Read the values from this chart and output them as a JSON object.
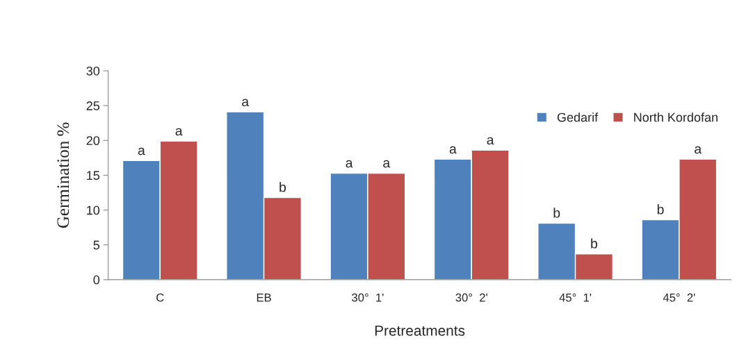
{
  "chart_data": {
    "type": "bar",
    "xlabel": "Pretreatments",
    "ylabel": "Germination %",
    "categories": [
      "C",
      "EB",
      "30°  1ʹ",
      "30°  2ʹ",
      "45°  1ʹ",
      "45°  2ʹ"
    ],
    "series": [
      {
        "name": "Gedarif",
        "color": "#4f81bd",
        "values": [
          17.1,
          24.1,
          15.3,
          17.3,
          8.1,
          8.6
        ],
        "value_labels": [
          "a",
          "a",
          "a",
          "a",
          "b",
          "b"
        ]
      },
      {
        "name": "North Kordofan",
        "color": "#c0504d",
        "values": [
          19.9,
          11.8,
          15.3,
          18.6,
          3.7,
          17.3
        ],
        "value_labels": [
          "a",
          "b",
          "a",
          "a",
          "b",
          "a"
        ]
      }
    ],
    "ylim": [
      0,
      30
    ],
    "yticks": [
      0,
      5,
      10,
      15,
      20,
      25,
      30
    ],
    "legend": "top right"
  }
}
